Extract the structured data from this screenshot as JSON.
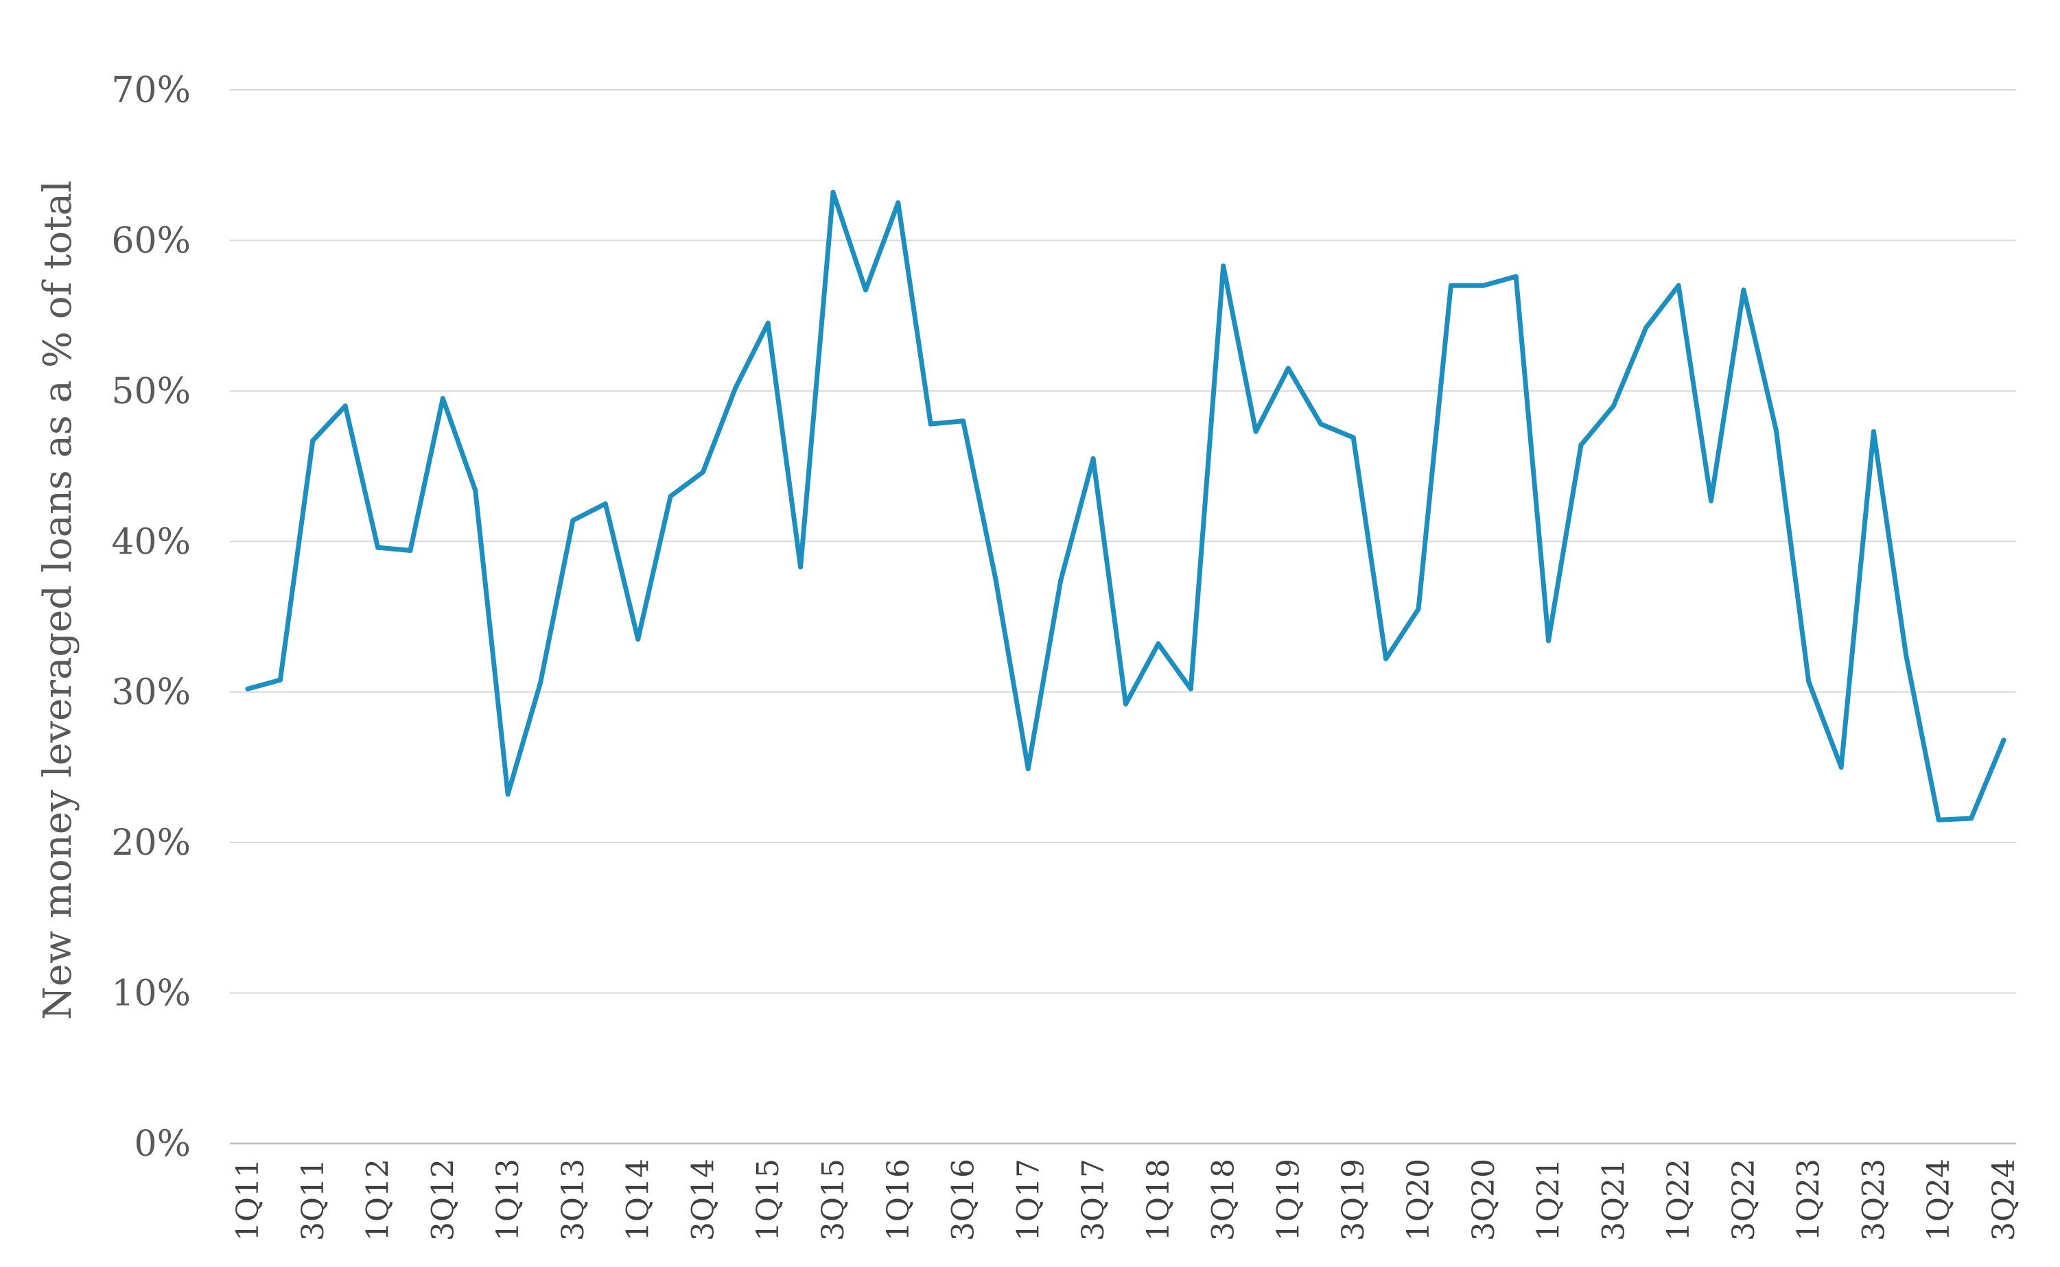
{
  "chart_data": {
    "type": "line",
    "title": "",
    "xlabel": "",
    "ylabel": "New money leveraged loans as a % of total",
    "ylim": [
      0,
      70
    ],
    "ytick_values": [
      0,
      10,
      20,
      30,
      40,
      50,
      60,
      70
    ],
    "ytick_labels": [
      "0%",
      "10%",
      "20%",
      "30%",
      "40%",
      "50%",
      "60%",
      "70%"
    ],
    "grid": true,
    "legend": "none",
    "categories": [
      "1Q11",
      "2Q11",
      "3Q11",
      "4Q11",
      "1Q12",
      "2Q12",
      "3Q12",
      "4Q12",
      "1Q13",
      "2Q13",
      "3Q13",
      "4Q13",
      "1Q14",
      "2Q14",
      "3Q14",
      "4Q14",
      "1Q15",
      "2Q15",
      "3Q15",
      "4Q15",
      "1Q16",
      "2Q16",
      "3Q16",
      "4Q16",
      "1Q17",
      "2Q17",
      "3Q17",
      "4Q17",
      "1Q18",
      "2Q18",
      "3Q18",
      "4Q18",
      "1Q19",
      "2Q19",
      "3Q19",
      "4Q19",
      "1Q20",
      "2Q20",
      "3Q20",
      "4Q20",
      "1Q21",
      "2Q21",
      "3Q21",
      "4Q21",
      "1Q22",
      "2Q22",
      "3Q22",
      "4Q22",
      "1Q23",
      "2Q23",
      "3Q23",
      "4Q23",
      "1Q24",
      "2Q24",
      "3Q24"
    ],
    "xtick_labels": [
      "1Q11",
      "3Q11",
      "1Q12",
      "3Q12",
      "1Q13",
      "3Q13",
      "1Q14",
      "3Q14",
      "1Q15",
      "3Q15",
      "1Q16",
      "3Q16",
      "1Q17",
      "3Q17",
      "1Q18",
      "3Q18",
      "1Q19",
      "3Q19",
      "1Q20",
      "3Q20",
      "1Q21",
      "3Q21",
      "1Q22",
      "3Q22",
      "1Q23",
      "3Q23",
      "1Q24",
      "3Q24"
    ],
    "series": [
      {
        "color": "#1a8fc0",
        "values": [
          30.2,
          30.8,
          46.7,
          49.0,
          39.6,
          39.4,
          49.5,
          43.4,
          23.2,
          30.6,
          41.4,
          42.5,
          33.5,
          43.0,
          44.6,
          50.2,
          54.5,
          38.3,
          63.2,
          56.7,
          62.5,
          47.8,
          48.0,
          37.5,
          24.9,
          37.4,
          45.5,
          29.2,
          33.2,
          30.2,
          58.3,
          47.3,
          51.5,
          47.8,
          46.9,
          32.2,
          35.5,
          57.0,
          57.0,
          57.6,
          33.4,
          46.4,
          49.0,
          54.2,
          57.0,
          42.7,
          56.7,
          47.4,
          30.7,
          25.0,
          47.3,
          32.4,
          21.5,
          21.6,
          26.8
        ]
      }
    ]
  }
}
